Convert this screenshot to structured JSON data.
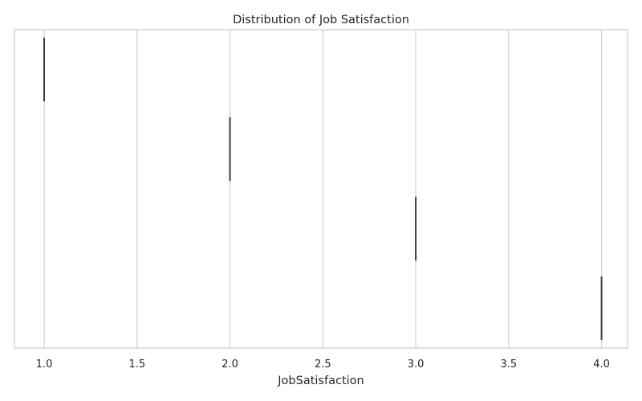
{
  "chart_data": {
    "type": "box",
    "title": "Distribution of Job Satisfaction",
    "xlabel": "JobSatisfaction",
    "ylabel": "",
    "xlim": [
      0.84,
      4.14
    ],
    "xticks": [
      1.0,
      1.5,
      2.0,
      2.5,
      3.0,
      3.5,
      4.0
    ],
    "xtick_labels": [
      "1.0",
      "1.5",
      "2.0",
      "2.5",
      "3.0",
      "3.5",
      "4.0"
    ],
    "grid": true,
    "series": [
      {
        "value": 1.0
      },
      {
        "value": 2.0
      },
      {
        "value": 3.0
      },
      {
        "value": 4.0
      }
    ],
    "colors": {
      "mark": "#3d3d3d",
      "grid": "#d3d3d3",
      "frame": "#cfcfcf",
      "text": "#262626"
    }
  }
}
